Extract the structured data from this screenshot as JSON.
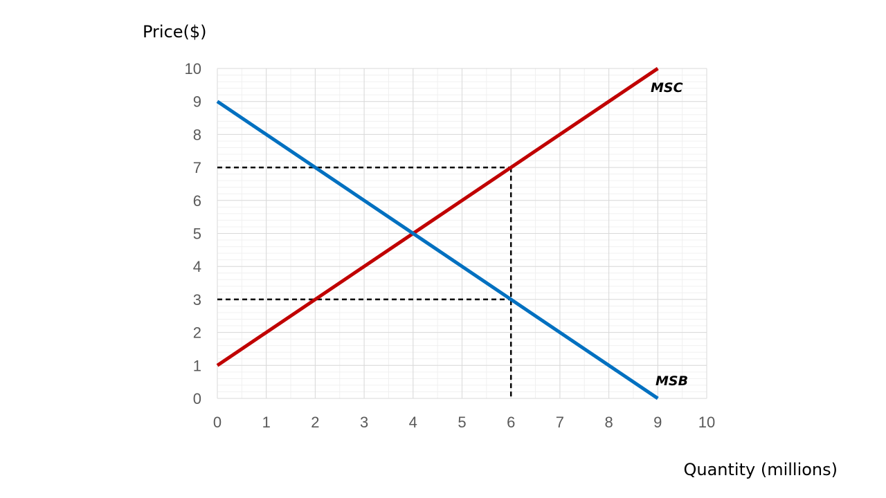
{
  "chart_data": {
    "type": "line",
    "title": "",
    "xlabel": "Quantity (millions)",
    "ylabel": "Price($)",
    "xlim": [
      0,
      10
    ],
    "ylim": [
      0,
      10
    ],
    "x_ticks": [
      "0",
      "1",
      "2",
      "3",
      "4",
      "5",
      "6",
      "7",
      "8",
      "9",
      "10"
    ],
    "y_ticks": [
      "0",
      "1",
      "2",
      "3",
      "4",
      "5",
      "6",
      "7",
      "8",
      "9",
      "10"
    ],
    "grid": true,
    "minor_grid": true,
    "legend": "none",
    "series": [
      {
        "name": "MSC",
        "color": "#C00000",
        "x": [
          0,
          9
        ],
        "y": [
          1,
          10
        ]
      },
      {
        "name": "MSB",
        "color": "#0070C0",
        "x": [
          0,
          9
        ],
        "y": [
          9,
          0
        ]
      }
    ],
    "reference_lines": [
      {
        "style": "dashed",
        "color": "#000000",
        "x": [
          0,
          6
        ],
        "y": [
          7,
          7
        ]
      },
      {
        "style": "dashed",
        "color": "#000000",
        "x": [
          0,
          6
        ],
        "y": [
          3,
          3
        ]
      },
      {
        "style": "dashed",
        "color": "#000000",
        "x": [
          6,
          6
        ],
        "y": [
          7,
          0
        ]
      }
    ]
  }
}
